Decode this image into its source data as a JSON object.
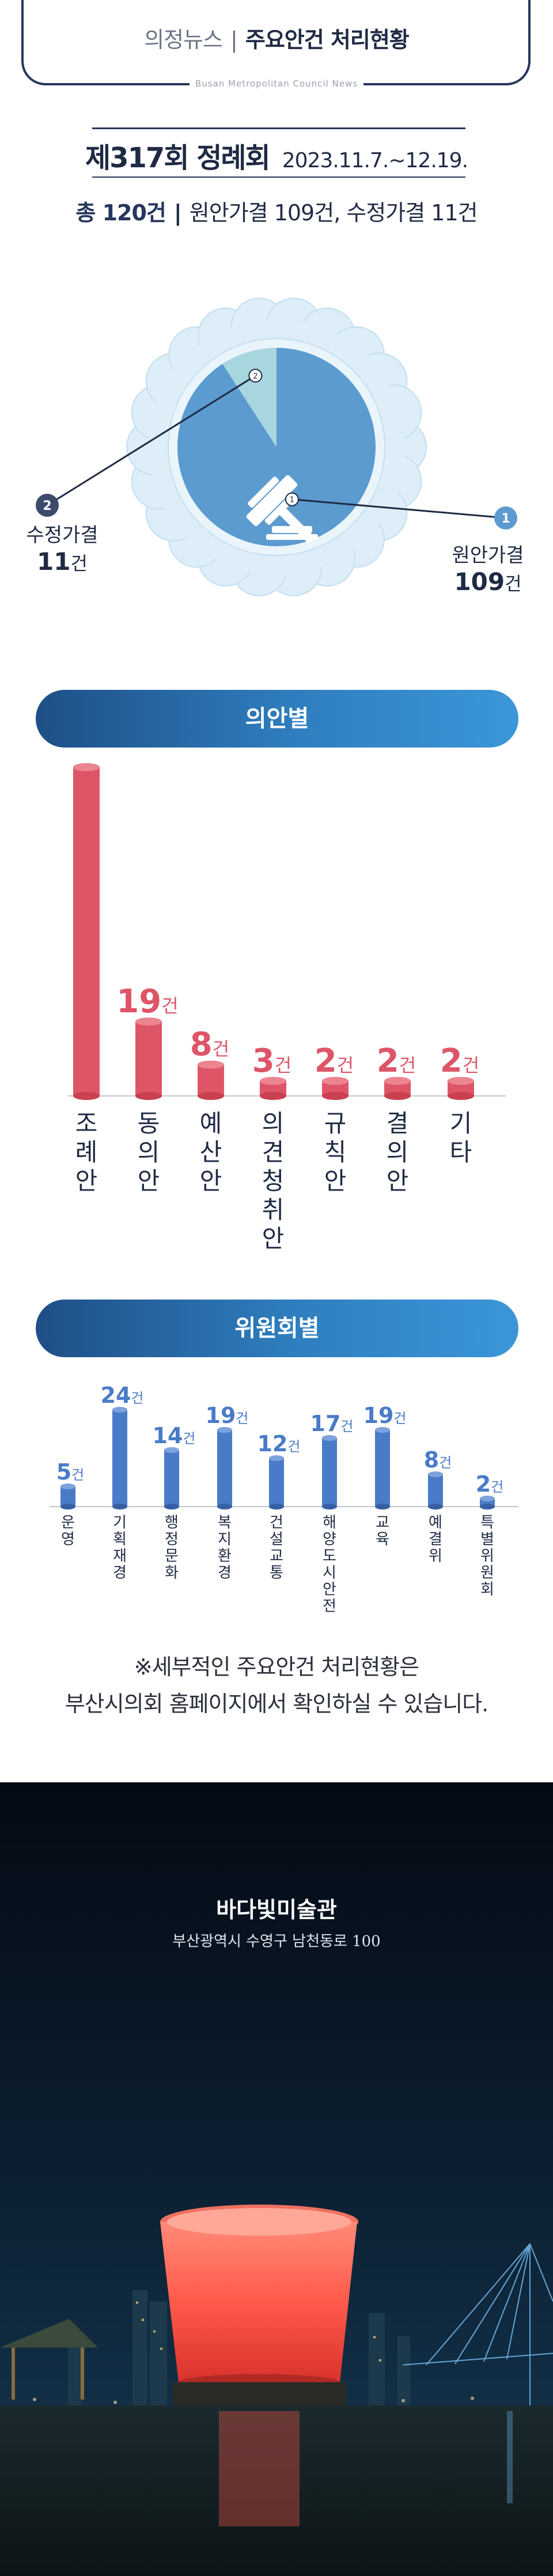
{
  "header": {
    "category": "의정뉴스",
    "separator": "|",
    "title": "주요안건 처리현황",
    "subtitle": "Busan Metropolitan Council News"
  },
  "session": {
    "name": "제317회 정례회",
    "period": "2023.11.7.~12.19."
  },
  "totals": {
    "total": "총 120건",
    "separator": "|",
    "detail": "원안가결 109건, 수정가결 11건"
  },
  "pie": {
    "label_original": "원안가결",
    "value_original_text": "109",
    "label_amended": "수정가결",
    "value_amended_text": "11",
    "unit": "건",
    "marker_original": "1",
    "marker_amended": "2"
  },
  "sections": {
    "by_type": "의안별",
    "by_committee": "위원회별"
  },
  "chart_data": [
    {
      "type": "pie",
      "categories": [
        "원안가결",
        "수정가결"
      ],
      "values": [
        109,
        11
      ],
      "colors": [
        "#5b9bcf",
        "#a8d6df"
      ]
    },
    {
      "type": "bar",
      "categories": [
        "조례안",
        "동의안",
        "예산안",
        "의견청취안",
        "규칙안",
        "결의안",
        "기타"
      ],
      "values": [
        84,
        19,
        8,
        3,
        2,
        2,
        2
      ],
      "unit": "건",
      "color": "#de5568"
    },
    {
      "type": "bar",
      "categories": [
        "운영",
        "기획재경",
        "행정문화",
        "복지환경",
        "건설교통",
        "해양도시안전",
        "교육",
        "예결위",
        "특별위원회"
      ],
      "values": [
        5,
        24,
        14,
        19,
        12,
        17,
        19,
        8,
        2
      ],
      "unit": "건",
      "color": "#4a7bc8"
    }
  ],
  "note": {
    "line1": "※세부적인 주요안건 처리현황은",
    "line2": "부산시의회 홈페이지에서 확인하실 수 있습니다."
  },
  "photo": {
    "title": "바다빛미술관",
    "address": "부산광역시 수영구 남천동로 100"
  },
  "colors": {
    "navy": "#27365d",
    "pie_main": "#5b9bcf",
    "pie_minor": "#a8d6df",
    "bar_red": "#de5568",
    "bar_blue": "#4a7bc8"
  }
}
